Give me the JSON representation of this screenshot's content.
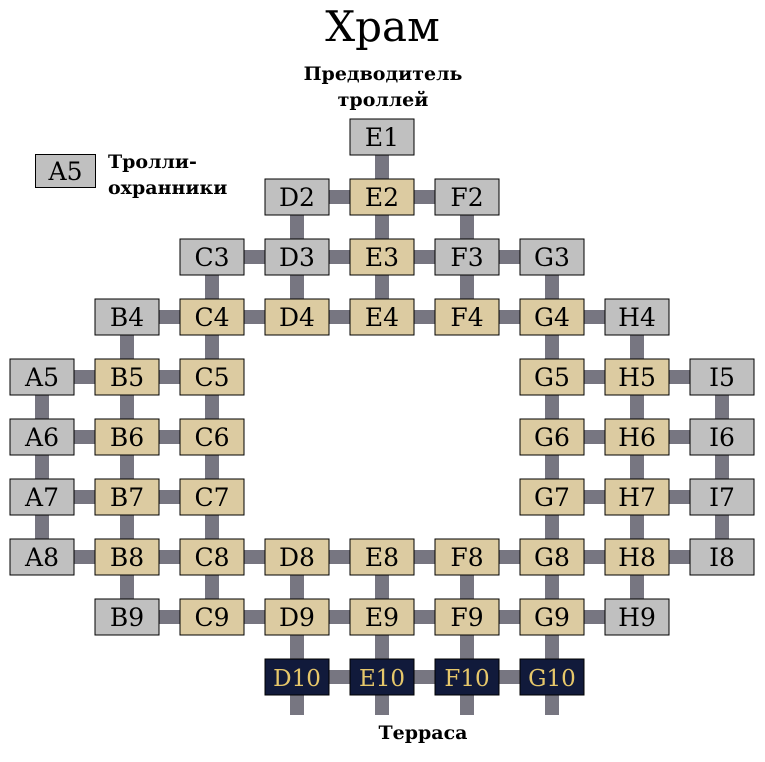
{
  "title": "Храм",
  "labels": {
    "leader_line1": "Предводитель",
    "leader_line2": "троллей",
    "guards_line1": "Тролли-",
    "guards_line2": "охранники",
    "guards_example": "A5",
    "terrace": "Терраса"
  },
  "colors": {
    "gray": "#c0c0c0",
    "tan": "#dccba1",
    "navy": "#111a3b",
    "navy_text": "#e6c76a",
    "connector": "#777681"
  },
  "cells": [
    {
      "id": "E1",
      "type": "gray"
    },
    {
      "id": "D2",
      "type": "gray"
    },
    {
      "id": "E2",
      "type": "tan"
    },
    {
      "id": "F2",
      "type": "gray"
    },
    {
      "id": "C3",
      "type": "gray"
    },
    {
      "id": "D3",
      "type": "gray"
    },
    {
      "id": "E3",
      "type": "tan"
    },
    {
      "id": "F3",
      "type": "gray"
    },
    {
      "id": "G3",
      "type": "gray"
    },
    {
      "id": "B4",
      "type": "gray"
    },
    {
      "id": "C4",
      "type": "tan"
    },
    {
      "id": "D4",
      "type": "tan"
    },
    {
      "id": "E4",
      "type": "tan"
    },
    {
      "id": "F4",
      "type": "tan"
    },
    {
      "id": "G4",
      "type": "tan"
    },
    {
      "id": "H4",
      "type": "gray"
    },
    {
      "id": "A5",
      "type": "gray"
    },
    {
      "id": "B5",
      "type": "tan"
    },
    {
      "id": "C5",
      "type": "tan"
    },
    {
      "id": "G5",
      "type": "tan"
    },
    {
      "id": "H5",
      "type": "tan"
    },
    {
      "id": "I5",
      "type": "gray"
    },
    {
      "id": "A6",
      "type": "gray"
    },
    {
      "id": "B6",
      "type": "tan"
    },
    {
      "id": "C6",
      "type": "tan"
    },
    {
      "id": "G6",
      "type": "tan"
    },
    {
      "id": "H6",
      "type": "tan"
    },
    {
      "id": "I6",
      "type": "gray"
    },
    {
      "id": "A7",
      "type": "gray"
    },
    {
      "id": "B7",
      "type": "tan"
    },
    {
      "id": "C7",
      "type": "tan"
    },
    {
      "id": "G7",
      "type": "tan"
    },
    {
      "id": "H7",
      "type": "tan"
    },
    {
      "id": "I7",
      "type": "gray"
    },
    {
      "id": "A8",
      "type": "gray"
    },
    {
      "id": "B8",
      "type": "tan"
    },
    {
      "id": "C8",
      "type": "tan"
    },
    {
      "id": "D8",
      "type": "tan"
    },
    {
      "id": "E8",
      "type": "tan"
    },
    {
      "id": "F8",
      "type": "tan"
    },
    {
      "id": "G8",
      "type": "tan"
    },
    {
      "id": "H8",
      "type": "tan"
    },
    {
      "id": "I8",
      "type": "gray"
    },
    {
      "id": "B9",
      "type": "gray"
    },
    {
      "id": "C9",
      "type": "tan"
    },
    {
      "id": "D9",
      "type": "tan"
    },
    {
      "id": "E9",
      "type": "tan"
    },
    {
      "id": "F9",
      "type": "tan"
    },
    {
      "id": "G9",
      "type": "tan"
    },
    {
      "id": "H9",
      "type": "gray"
    },
    {
      "id": "D10",
      "type": "navy"
    },
    {
      "id": "E10",
      "type": "navy"
    },
    {
      "id": "F10",
      "type": "navy"
    },
    {
      "id": "G10",
      "type": "navy"
    }
  ],
  "connections": [
    [
      "E1",
      "E2"
    ],
    [
      "D2",
      "E2"
    ],
    [
      "E2",
      "F2"
    ],
    [
      "D2",
      "D3"
    ],
    [
      "E2",
      "E3"
    ],
    [
      "F2",
      "F3"
    ],
    [
      "C3",
      "D3"
    ],
    [
      "D3",
      "E3"
    ],
    [
      "E3",
      "F3"
    ],
    [
      "F3",
      "G3"
    ],
    [
      "C3",
      "C4"
    ],
    [
      "D3",
      "D4"
    ],
    [
      "E3",
      "E4"
    ],
    [
      "F3",
      "F4"
    ],
    [
      "G3",
      "G4"
    ],
    [
      "B4",
      "C4"
    ],
    [
      "C4",
      "D4"
    ],
    [
      "D4",
      "E4"
    ],
    [
      "E4",
      "F4"
    ],
    [
      "F4",
      "G4"
    ],
    [
      "G4",
      "H4"
    ],
    [
      "B4",
      "B5"
    ],
    [
      "C4",
      "C5"
    ],
    [
      "G4",
      "G5"
    ],
    [
      "H4",
      "H5"
    ],
    [
      "A5",
      "B5"
    ],
    [
      "B5",
      "C5"
    ],
    [
      "G5",
      "H5"
    ],
    [
      "H5",
      "I5"
    ],
    [
      "A5",
      "A6"
    ],
    [
      "B5",
      "B6"
    ],
    [
      "C5",
      "C6"
    ],
    [
      "G5",
      "G6"
    ],
    [
      "H5",
      "H6"
    ],
    [
      "I5",
      "I6"
    ],
    [
      "A6",
      "B6"
    ],
    [
      "B6",
      "C6"
    ],
    [
      "G6",
      "H6"
    ],
    [
      "H6",
      "I6"
    ],
    [
      "A6",
      "A7"
    ],
    [
      "B6",
      "B7"
    ],
    [
      "C6",
      "C7"
    ],
    [
      "G6",
      "G7"
    ],
    [
      "H6",
      "H7"
    ],
    [
      "I6",
      "I7"
    ],
    [
      "A7",
      "B7"
    ],
    [
      "B7",
      "C7"
    ],
    [
      "G7",
      "H7"
    ],
    [
      "H7",
      "I7"
    ],
    [
      "A7",
      "A8"
    ],
    [
      "B7",
      "B8"
    ],
    [
      "C7",
      "C8"
    ],
    [
      "G7",
      "G8"
    ],
    [
      "H7",
      "H8"
    ],
    [
      "I7",
      "I8"
    ],
    [
      "A8",
      "B8"
    ],
    [
      "B8",
      "C8"
    ],
    [
      "C8",
      "D8"
    ],
    [
      "D8",
      "E8"
    ],
    [
      "E8",
      "F8"
    ],
    [
      "F8",
      "G8"
    ],
    [
      "G8",
      "H8"
    ],
    [
      "H8",
      "I8"
    ],
    [
      "B8",
      "B9"
    ],
    [
      "C8",
      "C9"
    ],
    [
      "D8",
      "D9"
    ],
    [
      "E8",
      "E9"
    ],
    [
      "F8",
      "F9"
    ],
    [
      "G8",
      "G9"
    ],
    [
      "H8",
      "H9"
    ],
    [
      "B9",
      "C9"
    ],
    [
      "C9",
      "D9"
    ],
    [
      "D9",
      "E9"
    ],
    [
      "E9",
      "F9"
    ],
    [
      "F9",
      "G9"
    ],
    [
      "G9",
      "H9"
    ],
    [
      "D9",
      "D10"
    ],
    [
      "E9",
      "E10"
    ],
    [
      "F9",
      "F10"
    ],
    [
      "G9",
      "G10"
    ],
    [
      "D10",
      "E10"
    ],
    [
      "E10",
      "F10"
    ],
    [
      "F10",
      "G10"
    ]
  ],
  "exits": [
    "D10",
    "E10",
    "F10",
    "G10"
  ]
}
